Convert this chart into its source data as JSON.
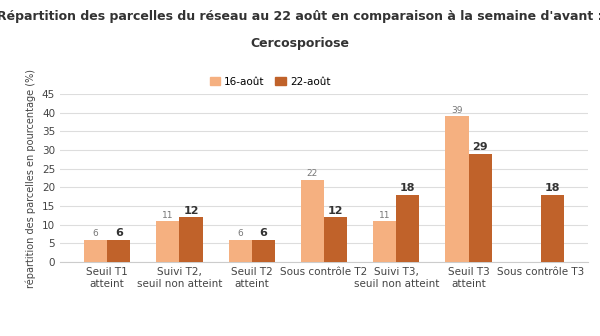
{
  "title_line1": "Répartition des parcelles du réseau au 22 août en comparaison à la semaine d'avant :",
  "title_line2": "Cercosporiose",
  "ylabel": "répartition des parcelles en pourcentage (%)",
  "categories": [
    "Seuil T1\natteint",
    "Suivi T2,\nseuil non atteint",
    "Seuil T2\natteint",
    "Sous contrôle T2",
    "Suivi T3,\nseuil non atteint",
    "Seuil T3\natteint",
    "Sous contrôle T3"
  ],
  "series1_label": "16-août",
  "series2_label": "22-août",
  "series1_values": [
    6,
    11,
    6,
    22,
    11,
    39,
    0
  ],
  "series2_values": [
    6,
    12,
    6,
    12,
    18,
    29,
    18
  ],
  "color1": "#F5B080",
  "color2": "#C0622A",
  "ylim": [
    0,
    45
  ],
  "yticks": [
    0,
    5,
    10,
    15,
    20,
    25,
    30,
    35,
    40,
    45
  ],
  "bar_width": 0.32,
  "background_color": "#ffffff",
  "grid_color": "#dddddd",
  "title_fontsize": 9,
  "label_fontsize": 7,
  "tick_fontsize": 7.5,
  "value1_fontsize": 6.5,
  "value2_fontsize": 8
}
